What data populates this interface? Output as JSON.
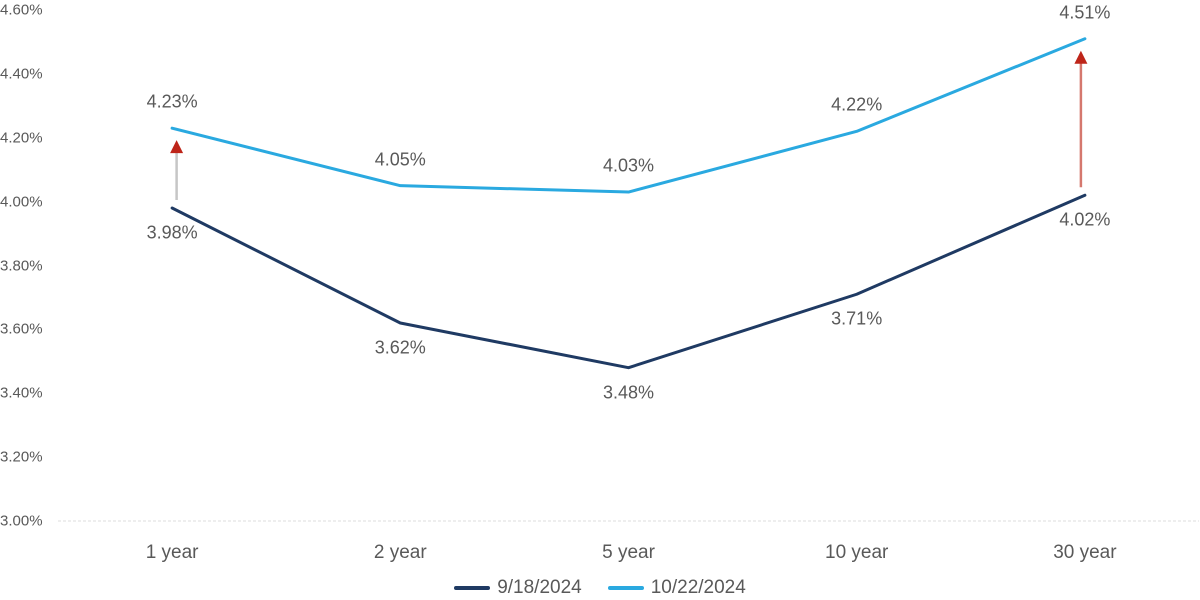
{
  "chart_data": {
    "type": "line",
    "title": "",
    "categories": [
      "1 year",
      "2 year",
      "5 year",
      "10 year",
      "30 year"
    ],
    "series": [
      {
        "name": "9/18/2024",
        "color": "#1F3A63",
        "values": [
          3.98,
          3.62,
          3.48,
          3.71,
          4.02
        ],
        "labels": [
          "3.98%",
          "3.62%",
          "3.48%",
          "3.71%",
          "4.02%"
        ],
        "label_position": "below"
      },
      {
        "name": "10/22/2024",
        "color": "#2AA9E0",
        "values": [
          4.23,
          4.05,
          4.03,
          4.22,
          4.51
        ],
        "labels": [
          "4.23%",
          "4.05%",
          "4.03%",
          "4.22%",
          "4.51%"
        ],
        "label_position": "above"
      }
    ],
    "y_axis": {
      "min": 3.0,
      "max": 4.6,
      "step": 0.2,
      "ticks": [
        {
          "label": "4.60%",
          "value": 4.6
        },
        {
          "label": "4.40%",
          "value": 4.4
        },
        {
          "label": "4.20%",
          "value": 4.2
        },
        {
          "label": "4.00%",
          "value": 4.0
        },
        {
          "label": "3.80%",
          "value": 3.8
        },
        {
          "label": "3.60%",
          "value": 3.6
        },
        {
          "label": "3.40%",
          "value": 3.4
        },
        {
          "label": "3.20%",
          "value": 3.2
        },
        {
          "label": "3.00%",
          "value": 3.0
        }
      ]
    },
    "xlabel": "",
    "ylabel": "",
    "grid": "off",
    "axis_line_color": "#DCDCDC",
    "text_color": "#595959",
    "annotations": [
      {
        "type": "arrow-up",
        "category": "1 year",
        "from_series": "9/18/2024",
        "to_series": "10/22/2024",
        "shaft_color": "#C6C6C6",
        "head_color": "#BE2519"
      },
      {
        "type": "arrow-up",
        "category": "30 year",
        "from_series": "9/18/2024",
        "to_series": "10/22/2024",
        "shaft_color": "#D5786E",
        "head_color": "#BE2519"
      }
    ],
    "legend": [
      {
        "label": "9/18/2024",
        "color": "#1F3A63"
      },
      {
        "label": "10/22/2024",
        "color": "#2AA9E0"
      }
    ],
    "legend_position": "bottom-center"
  }
}
